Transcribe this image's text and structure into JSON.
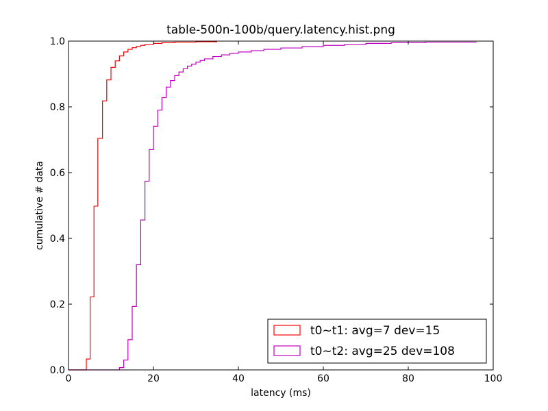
{
  "chart_data": {
    "type": "line",
    "title": "table-500n-100b/query.latency.hist.png",
    "xlabel": "latency (ms)",
    "ylabel": "cumulative # data",
    "xlim": [
      0,
      100
    ],
    "ylim": [
      0,
      1
    ],
    "x_ticks": [
      "0",
      "20",
      "40",
      "60",
      "80",
      "100"
    ],
    "y_ticks": [
      "0.0",
      "0.2",
      "0.4",
      "0.6",
      "0.8",
      "1.0"
    ],
    "grid": false,
    "legend_position": "bottom-right",
    "series": [
      {
        "name": "t0~t1: avg=7 dev=15",
        "color": "#ff0000",
        "points": [
          [
            0,
            0
          ],
          [
            4.2,
            0
          ],
          [
            4.2,
            0.033
          ],
          [
            5.1,
            0.033
          ],
          [
            5.1,
            0.222
          ],
          [
            6.0,
            0.222
          ],
          [
            6.0,
            0.498
          ],
          [
            6.9,
            0.498
          ],
          [
            6.9,
            0.704
          ],
          [
            8.0,
            0.704
          ],
          [
            8.0,
            0.818
          ],
          [
            9.0,
            0.818
          ],
          [
            9.0,
            0.882
          ],
          [
            10.0,
            0.882
          ],
          [
            10.0,
            0.92
          ],
          [
            11.0,
            0.92
          ],
          [
            11.0,
            0.94
          ],
          [
            12.0,
            0.94
          ],
          [
            12.0,
            0.955
          ],
          [
            13.0,
            0.955
          ],
          [
            13.0,
            0.967
          ],
          [
            14.0,
            0.967
          ],
          [
            14.0,
            0.975
          ],
          [
            15.0,
            0.975
          ],
          [
            15.0,
            0.98
          ],
          [
            16.0,
            0.98
          ],
          [
            16.0,
            0.984
          ],
          [
            17.0,
            0.984
          ],
          [
            17.0,
            0.987
          ],
          [
            18.0,
            0.987
          ],
          [
            18.0,
            0.99
          ],
          [
            20.0,
            0.99
          ],
          [
            20.0,
            0.993
          ],
          [
            22.0,
            0.993
          ],
          [
            22.0,
            0.995
          ],
          [
            25.0,
            0.995
          ],
          [
            25.0,
            0.997
          ],
          [
            30.0,
            0.997
          ],
          [
            30.0,
            0.998
          ],
          [
            35.0,
            0.998
          ]
        ]
      },
      {
        "name": "t0~t2: avg=25 dev=108",
        "color": "#bf00bf",
        "points": [
          [
            0,
            0
          ],
          [
            12.0,
            0
          ],
          [
            12.0,
            0.007
          ],
          [
            13.0,
            0.007
          ],
          [
            13.0,
            0.03
          ],
          [
            14.0,
            0.03
          ],
          [
            14.0,
            0.092
          ],
          [
            15.0,
            0.092
          ],
          [
            15.0,
            0.193
          ],
          [
            16.0,
            0.193
          ],
          [
            16.0,
            0.32
          ],
          [
            17.0,
            0.32
          ],
          [
            17.0,
            0.456
          ],
          [
            18.0,
            0.456
          ],
          [
            18.0,
            0.574
          ],
          [
            19.0,
            0.574
          ],
          [
            19.0,
            0.67
          ],
          [
            20.0,
            0.67
          ],
          [
            20.0,
            0.741
          ],
          [
            21.0,
            0.741
          ],
          [
            21.0,
            0.79
          ],
          [
            22.0,
            0.79
          ],
          [
            22.0,
            0.828
          ],
          [
            23.0,
            0.828
          ],
          [
            23.0,
            0.86
          ],
          [
            24.0,
            0.86
          ],
          [
            24.0,
            0.88
          ],
          [
            25.0,
            0.88
          ],
          [
            25.0,
            0.895
          ],
          [
            26.0,
            0.895
          ],
          [
            26.0,
            0.906
          ],
          [
            27.0,
            0.906
          ],
          [
            27.0,
            0.916
          ],
          [
            28.0,
            0.916
          ],
          [
            28.0,
            0.924
          ],
          [
            29.0,
            0.924
          ],
          [
            29.0,
            0.93
          ],
          [
            30.0,
            0.93
          ],
          [
            30.0,
            0.936
          ],
          [
            31.0,
            0.936
          ],
          [
            31.0,
            0.941
          ],
          [
            32.0,
            0.941
          ],
          [
            32.0,
            0.946
          ],
          [
            34.0,
            0.946
          ],
          [
            34.0,
            0.953
          ],
          [
            36.0,
            0.953
          ],
          [
            36.0,
            0.958
          ],
          [
            38.0,
            0.958
          ],
          [
            38.0,
            0.963
          ],
          [
            40.0,
            0.963
          ],
          [
            40.0,
            0.967
          ],
          [
            43.0,
            0.967
          ],
          [
            43.0,
            0.971
          ],
          [
            46.0,
            0.971
          ],
          [
            46.0,
            0.975
          ],
          [
            50.0,
            0.975
          ],
          [
            50.0,
            0.979
          ],
          [
            55.0,
            0.979
          ],
          [
            55.0,
            0.983
          ],
          [
            60.0,
            0.983
          ],
          [
            60.0,
            0.987
          ],
          [
            65.0,
            0.987
          ],
          [
            65.0,
            0.99
          ],
          [
            70.0,
            0.99
          ],
          [
            70.0,
            0.993
          ],
          [
            76.0,
            0.993
          ],
          [
            76.0,
            0.995
          ],
          [
            84.0,
            0.995
          ],
          [
            84.0,
            0.997
          ],
          [
            96.0,
            0.997
          ],
          [
            96.0,
            0.998
          ]
        ]
      }
    ]
  }
}
